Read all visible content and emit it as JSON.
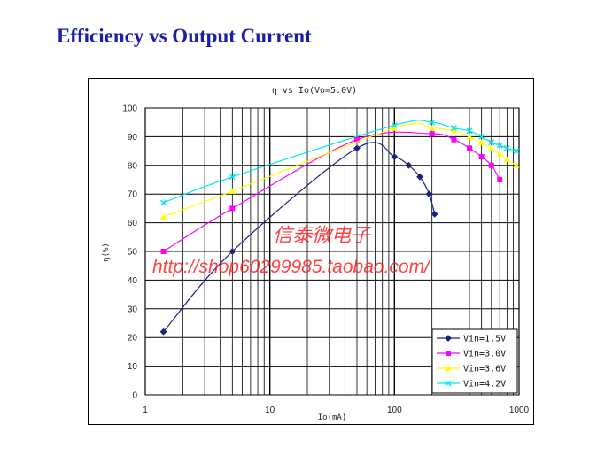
{
  "page": {
    "title": "Efficiency vs Output Current"
  },
  "watermark": {
    "cn": "信泰微电子",
    "url": "http://shop60299985.taobao.com/"
  },
  "chart_data": {
    "type": "line",
    "title": "η vs Io(Vo=5.0V)",
    "xlabel": "Io(mA)",
    "ylabel": "η(%)",
    "xscale": "log",
    "xlim": [
      1,
      1000
    ],
    "ylim": [
      0,
      100
    ],
    "x_ticks": [
      "1",
      "10",
      "100",
      "1000"
    ],
    "y_ticks": [
      "0",
      "10",
      "20",
      "30",
      "40",
      "50",
      "60",
      "70",
      "80",
      "90",
      "100"
    ],
    "grid": true,
    "legend_position": "bottom-right",
    "series": [
      {
        "name": "Vin=1.5V",
        "color": "#1a237e",
        "marker": "diamond",
        "x": [
          1.4,
          5,
          50,
          100,
          130,
          160,
          190,
          210
        ],
        "y": [
          22,
          50,
          86,
          83,
          80,
          76,
          70,
          63
        ]
      },
      {
        "name": "Vin=3.0V",
        "color": "#ff00ff",
        "marker": "square",
        "x": [
          1.4,
          5,
          50,
          200,
          300,
          400,
          500,
          600,
          700
        ],
        "y": [
          50,
          65,
          89,
          91,
          89,
          86,
          83,
          80,
          75
        ]
      },
      {
        "name": "Vin=3.6V",
        "color": "#ffff00",
        "marker": "triangle",
        "x": [
          1.4,
          5,
          100,
          200,
          300,
          400,
          500,
          600,
          700,
          800,
          950
        ],
        "y": [
          62,
          71,
          93,
          93,
          92,
          90,
          88,
          86,
          84,
          82,
          80
        ]
      },
      {
        "name": "Vin=4.2V",
        "color": "#00e5ee",
        "marker": "x",
        "x": [
          1.4,
          5,
          100,
          200,
          300,
          400,
          500,
          600,
          700,
          800,
          950
        ],
        "y": [
          67,
          76,
          94,
          95,
          93,
          92,
          90,
          88,
          87,
          86,
          85
        ]
      }
    ]
  }
}
